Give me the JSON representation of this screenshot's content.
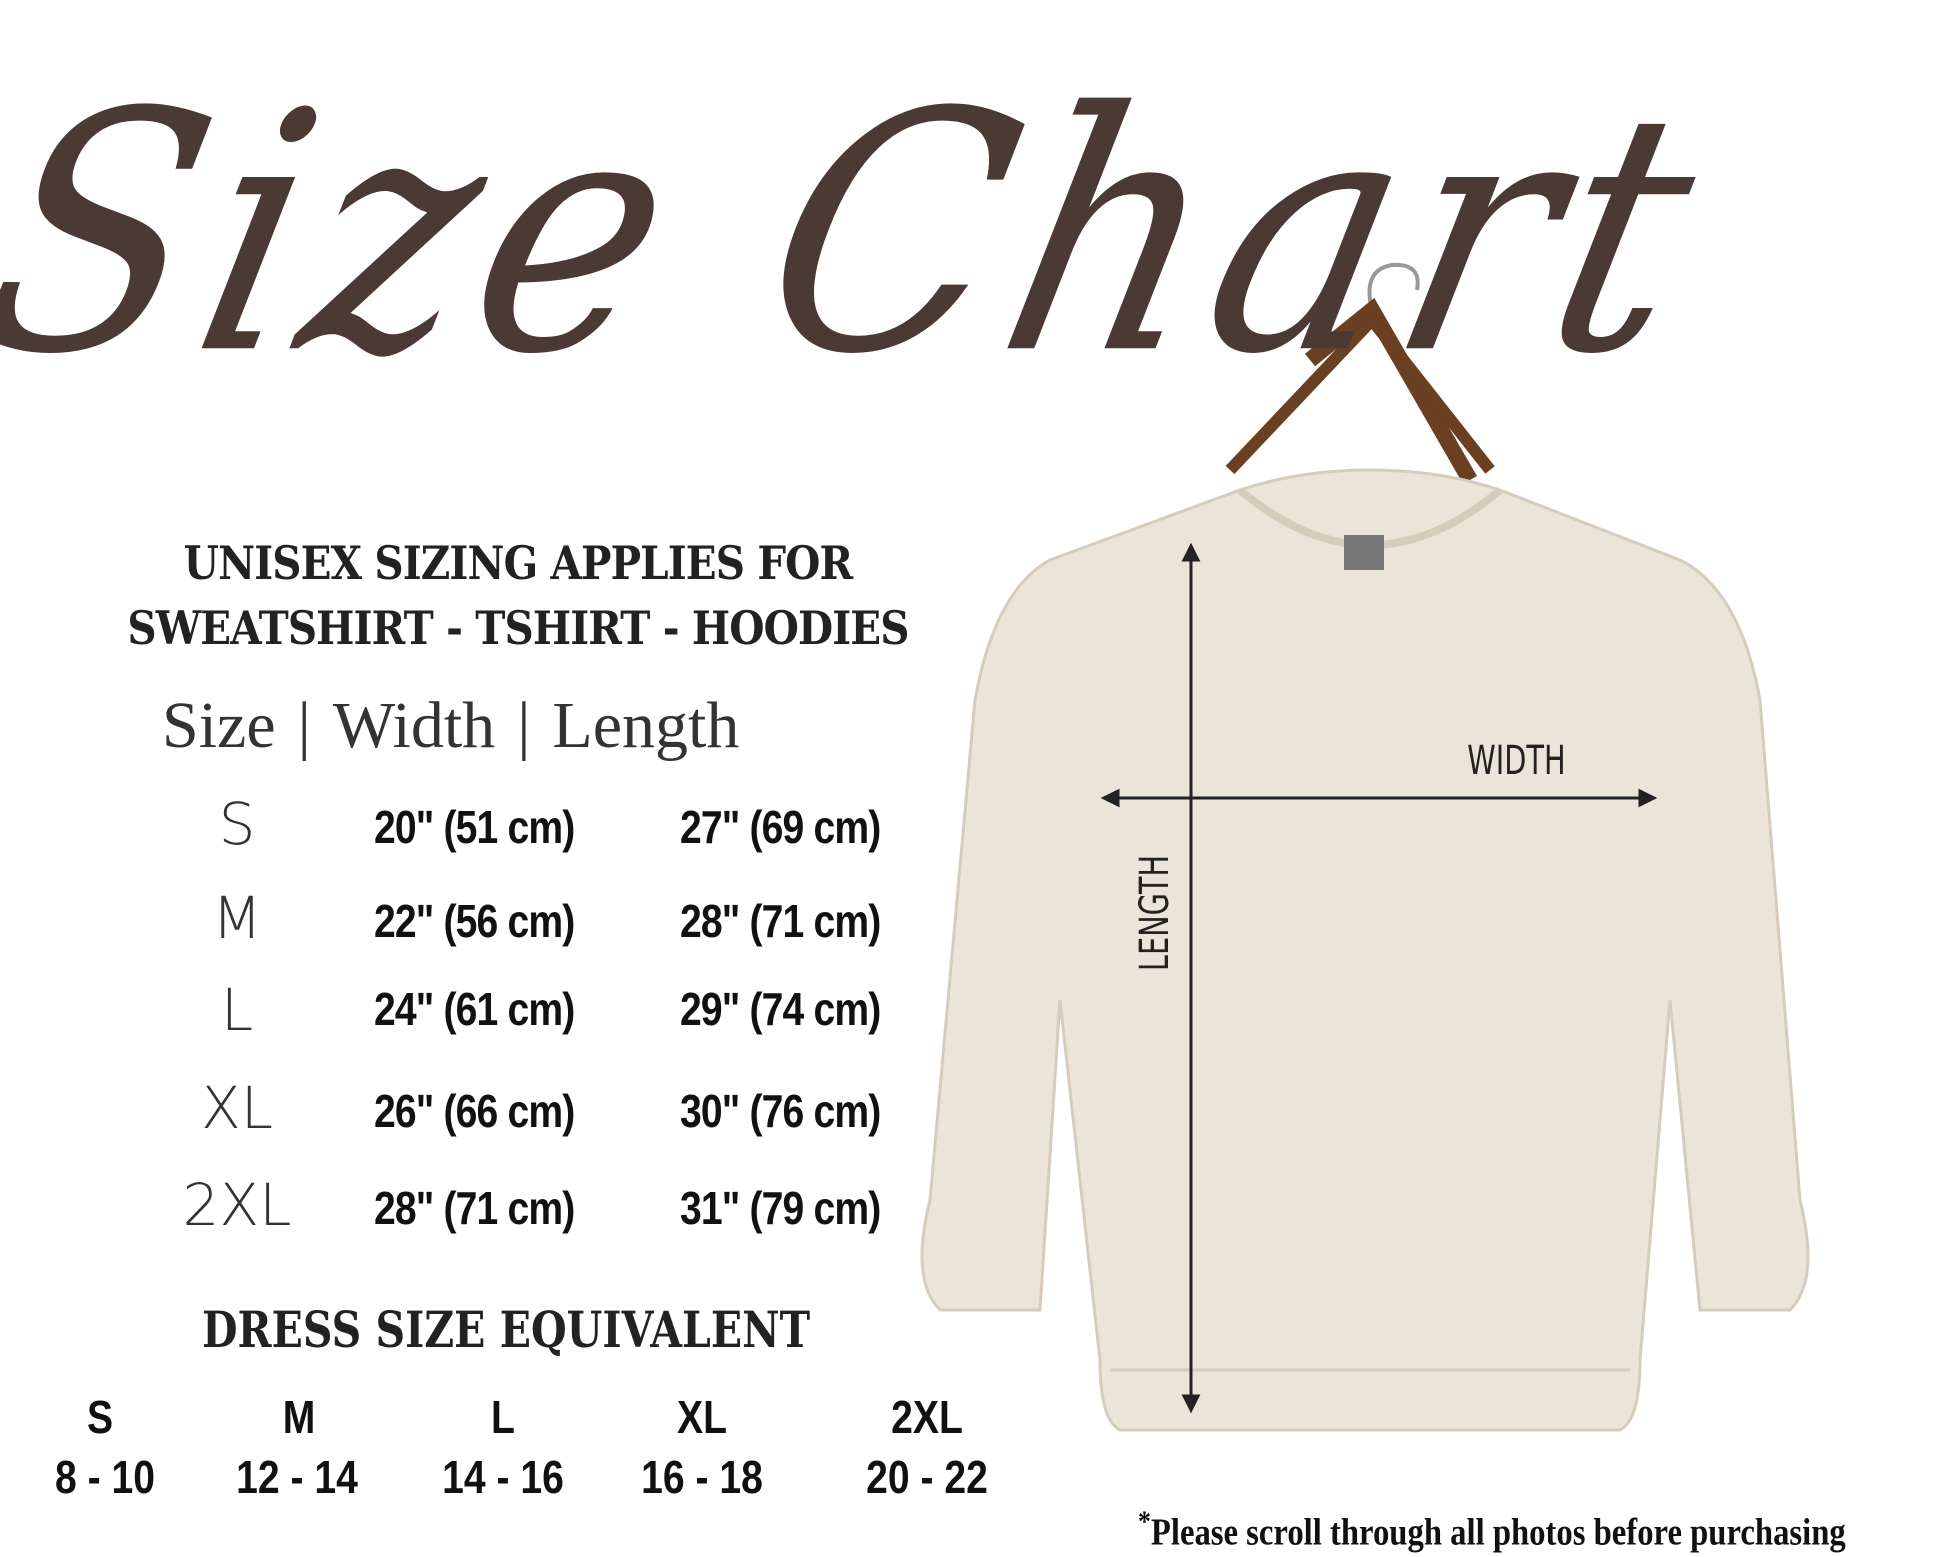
{
  "title": "Size Chart",
  "heading": {
    "line1": "UNISEX SIZING APPLIES FOR",
    "line2": "SWEATSHIRT - TSHIRT - HOODIES"
  },
  "table": {
    "columns": [
      "Size",
      "Width",
      "Length"
    ],
    "separator": "|",
    "rows": [
      {
        "size": "S",
        "width": "20\" (51 cm)",
        "length": "27\" (69 cm)"
      },
      {
        "size": "M",
        "width": "22\" (56 cm)",
        "length": "28\" (71 cm)"
      },
      {
        "size": "L",
        "width": "24\" (61 cm)",
        "length": "29\" (74 cm)"
      },
      {
        "size": "XL",
        "width": "26\" (66 cm)",
        "length": "30\" (76 cm)"
      },
      {
        "size": "2XL",
        "width": "28\" (71 cm)",
        "length": "31\" (79 cm)"
      }
    ]
  },
  "dress": {
    "heading": "DRESS SIZE EQUIVALENT",
    "items": [
      {
        "size": "S",
        "range": "8 - 10"
      },
      {
        "size": "M",
        "range": "12 - 14"
      },
      {
        "size": "L",
        "range": "14 - 16"
      },
      {
        "size": "XL",
        "range": "16 - 18"
      },
      {
        "size": "2XL",
        "range": "20 - 22"
      }
    ]
  },
  "diagram": {
    "width_label": "WIDTH",
    "length_label": "LENGTH",
    "garment_color": "#ebe4d8",
    "title_color": "#4a3a33"
  },
  "footer": {
    "asterisk": "*",
    "note": "Please scroll through all photos before purchasing"
  }
}
